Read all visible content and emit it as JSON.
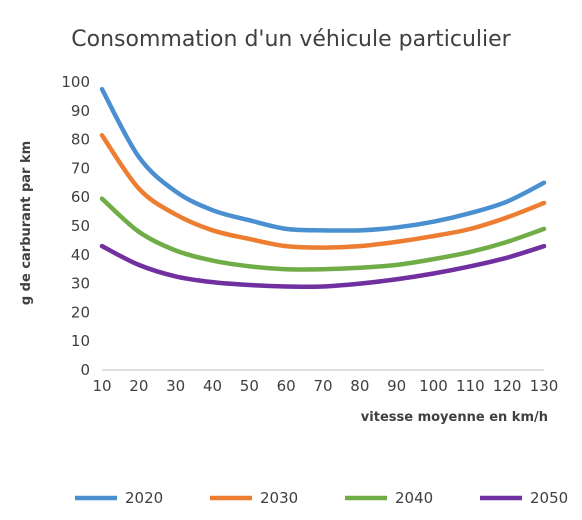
{
  "chart_data": {
    "type": "line",
    "title": "Consommation d'un véhicule particulier",
    "xlabel": "vitesse moyenne en km/h",
    "ylabel": "g de carburant par km",
    "x": [
      10,
      20,
      30,
      40,
      50,
      60,
      70,
      80,
      90,
      100,
      110,
      120,
      130
    ],
    "xticks": [
      "10",
      "20",
      "30",
      "40",
      "50",
      "60",
      "70",
      "80",
      "90",
      "100",
      "110",
      "120",
      "130"
    ],
    "yticks": [
      "0",
      "10",
      "20",
      "30",
      "40",
      "50",
      "60",
      "70",
      "80",
      "90",
      "100"
    ],
    "xlim": [
      10,
      130
    ],
    "ylim": [
      0,
      100
    ],
    "grid": false,
    "legend_position": "bottom",
    "series": [
      {
        "name": "2020",
        "color": "#4a90d0",
        "values": [
          97.5,
          74,
          62,
          55.5,
          52,
          49,
          48.5,
          48.5,
          49.5,
          51.5,
          54.5,
          58.5,
          65
        ]
      },
      {
        "name": "2030",
        "color": "#ed7d31",
        "values": [
          81.5,
          63,
          54,
          48.5,
          45.5,
          43,
          42.5,
          43,
          44.5,
          46.5,
          49,
          53,
          58
        ]
      },
      {
        "name": "2040",
        "color": "#70ad47",
        "values": [
          59.5,
          48,
          41.5,
          38,
          36,
          35,
          35,
          35.5,
          36.5,
          38.5,
          41,
          44.5,
          49
        ]
      },
      {
        "name": "2050",
        "color": "#7030a0",
        "values": [
          43,
          36.5,
          32.5,
          30.5,
          29.5,
          29,
          29,
          30,
          31.5,
          33.5,
          36,
          39,
          43
        ]
      }
    ]
  }
}
